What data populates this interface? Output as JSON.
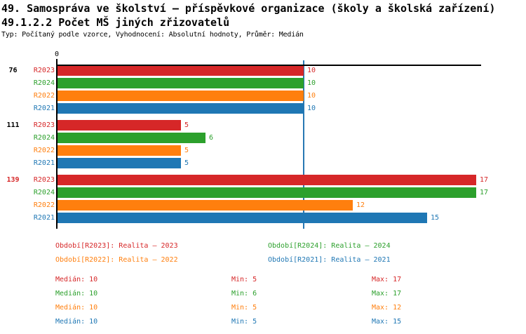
{
  "title": {
    "line1": "49. Samospráva ve školství – příspěvkové organizace (školy a školská zařízení)",
    "line2": "49.1.2.2 Počet MŠ jiných zřizovatelů",
    "line3": "Typ: Počítaný podle vzorce, Vyhodnocení: Absolutní hodnoty, Průměr: Medián"
  },
  "colors": {
    "red": "#d62728",
    "green": "#2ca02c",
    "orange": "#ff7f0e",
    "blue": "#1f77b4",
    "axis": "#000000",
    "median_line": "#2878b4",
    "text": "#000000",
    "highlight_group_label": "#d62728"
  },
  "chart_data": {
    "type": "bar",
    "orientation": "horizontal",
    "x_axis": {
      "zero_label": "0",
      "min": 0,
      "median_line_value": 10,
      "grid": false
    },
    "series_order": [
      "R2023",
      "R2024",
      "R2022",
      "R2021"
    ],
    "series_colors": {
      "R2023": "red",
      "R2024": "green",
      "R2022": "orange",
      "R2021": "blue"
    },
    "groups": [
      {
        "label": "76",
        "highlighted": false,
        "values": {
          "R2023": 10,
          "R2024": 10,
          "R2022": 10,
          "R2021": 10
        }
      },
      {
        "label": "111",
        "highlighted": false,
        "values": {
          "R2023": 5,
          "R2024": 6,
          "R2022": 5,
          "R2021": 5
        }
      },
      {
        "label": "139",
        "highlighted": true,
        "values": {
          "R2023": 17,
          "R2024": 17,
          "R2022": 12,
          "R2021": 15
        }
      }
    ]
  },
  "legend": [
    {
      "series": "R2023",
      "text": "Období[R2023]: Realita – 2023"
    },
    {
      "series": "R2024",
      "text": "Období[R2024]: Realita – 2024"
    },
    {
      "series": "R2022",
      "text": "Období[R2022]: Realita – 2022"
    },
    {
      "series": "R2021",
      "text": "Období[R2021]: Realita – 2021"
    }
  ],
  "stats_labels": {
    "median": "Medián",
    "min": "Min",
    "max": "Max"
  },
  "stats": [
    {
      "series": "R2023",
      "median": 10,
      "min": 5,
      "max": 17
    },
    {
      "series": "R2024",
      "median": 10,
      "min": 6,
      "max": 17
    },
    {
      "series": "R2022",
      "median": 10,
      "min": 5,
      "max": 12
    },
    {
      "series": "R2021",
      "median": 10,
      "min": 5,
      "max": 15
    }
  ]
}
